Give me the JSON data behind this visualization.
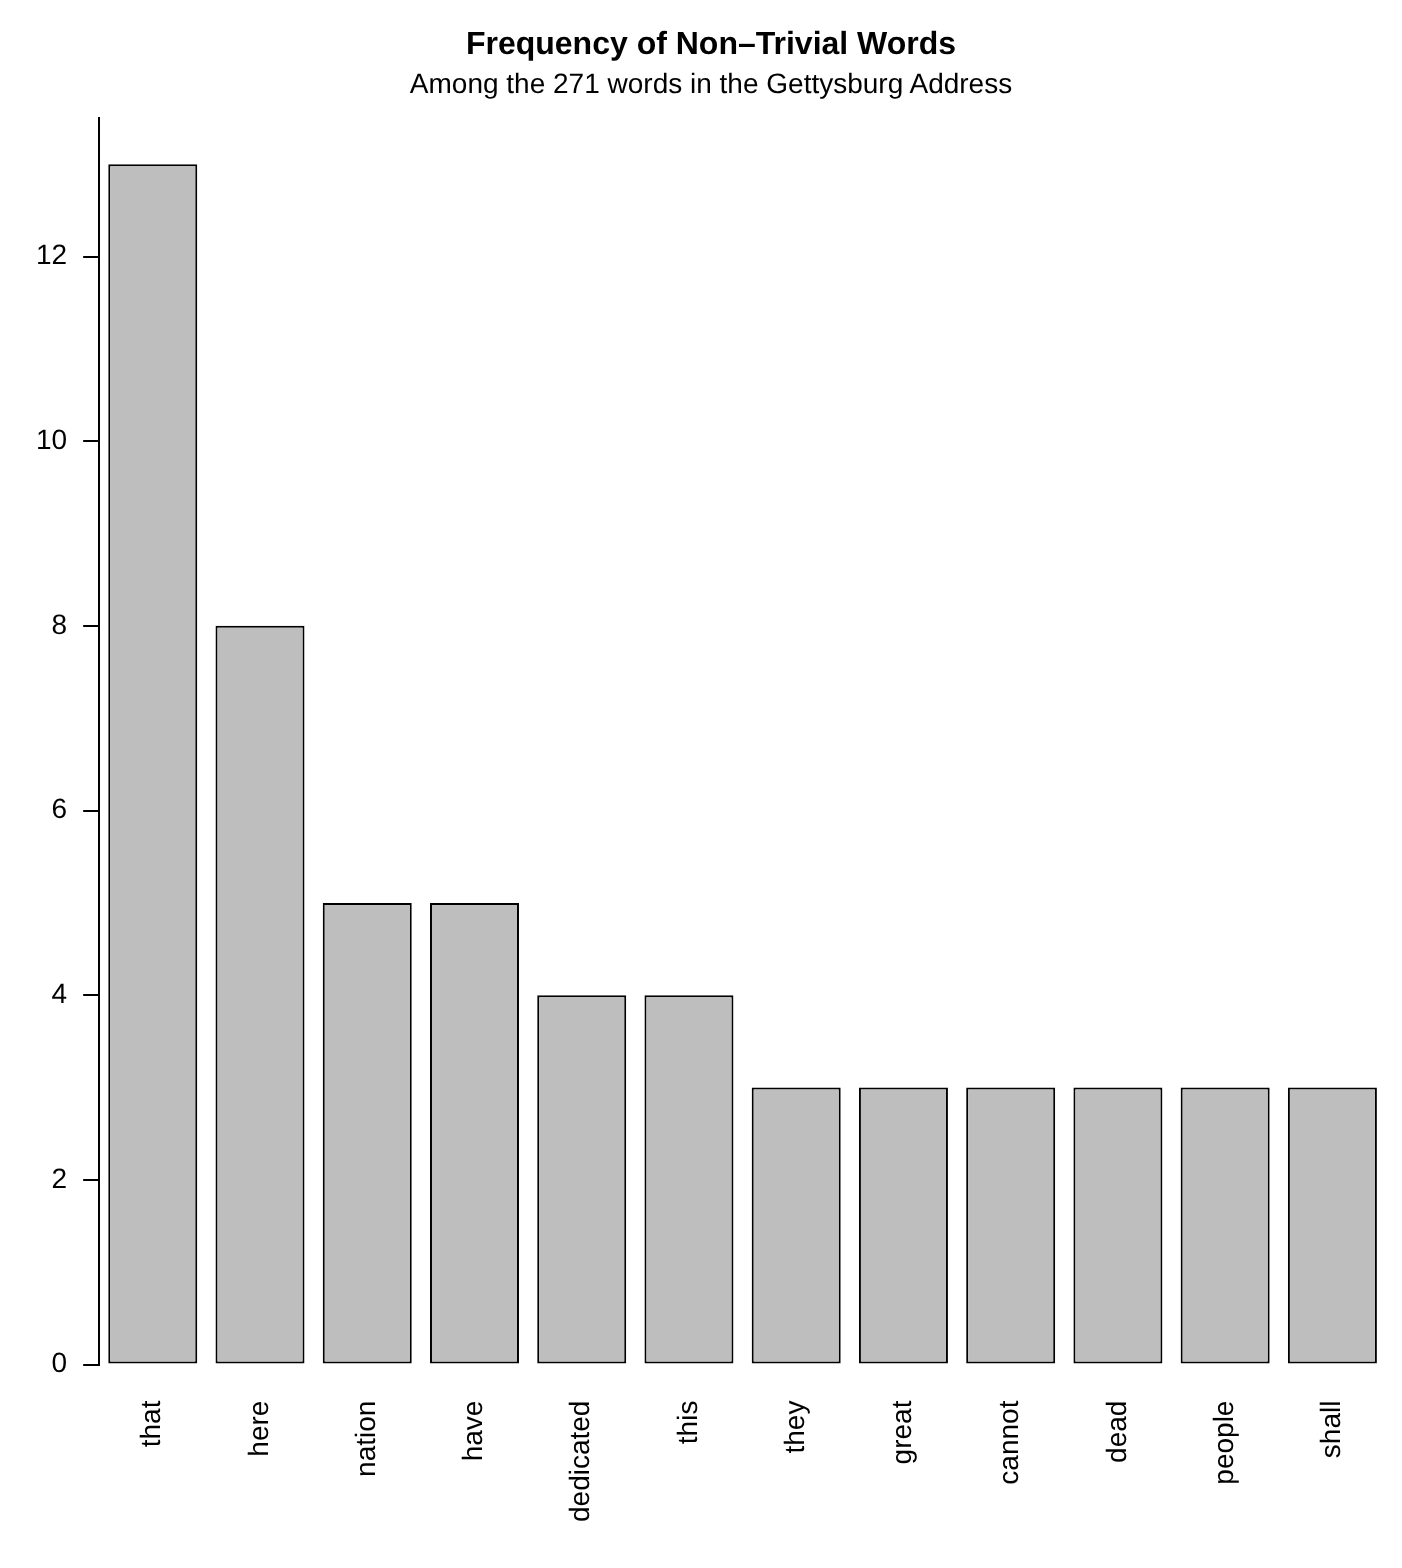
{
  "chart_data": {
    "type": "bar",
    "title": "Frequency of Non–Trivial Words",
    "subtitle": "Among the 271 words in the Gettysburg Address",
    "categories": [
      "that",
      "here",
      "nation",
      "have",
      "dedicated",
      "this",
      "they",
      "great",
      "cannot",
      "dead",
      "people",
      "shall"
    ],
    "values": [
      13,
      8,
      5,
      5,
      4,
      4,
      3,
      3,
      3,
      3,
      3,
      3
    ],
    "color": "#bebebe",
    "ylim": [
      0,
      13.5
    ],
    "yticks": [
      0,
      2,
      4,
      6,
      8,
      10,
      12
    ],
    "grid": false,
    "legend": false
  }
}
